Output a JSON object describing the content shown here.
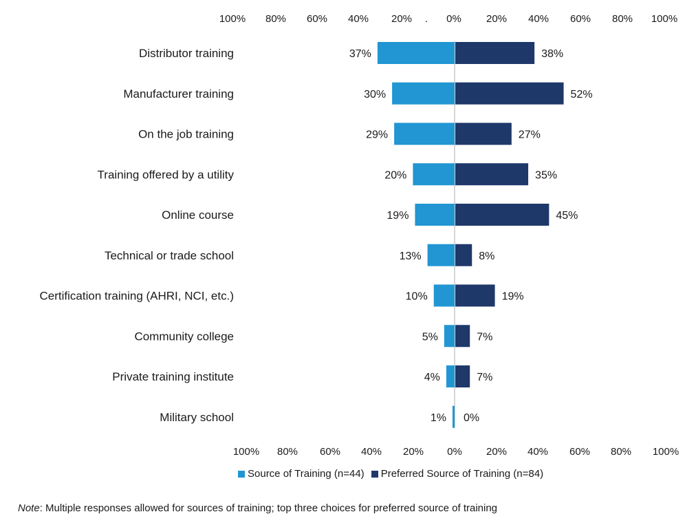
{
  "chart_data": {
    "type": "bar",
    "orientation": "horizontal-diverging",
    "categories": [
      "Distributor training",
      "Manufacturer training",
      "On the job training",
      "Training offered by a utility",
      "Online course",
      "Technical or trade school",
      "Certification training (AHRI, NCI, etc.)",
      "Community college",
      "Private training institute",
      "Military school"
    ],
    "series": [
      {
        "name": "Source of Training (n=44)",
        "side": "left",
        "color": "#2196d3",
        "values": [
          37,
          30,
          29,
          20,
          19,
          13,
          10,
          5,
          4,
          1
        ],
        "labels": [
          "37%",
          "30%",
          "29%",
          "20%",
          "19%",
          "13%",
          "10%",
          "5%",
          "4%",
          "1%"
        ]
      },
      {
        "name": "Preferred Source of Training (n=84)",
        "side": "right",
        "color": "#1f386a",
        "values": [
          38,
          52,
          27,
          35,
          45,
          8,
          19,
          7,
          7,
          0
        ],
        "labels": [
          "38%",
          "52%",
          "27%",
          "35%",
          "45%",
          "8%",
          "19%",
          "7%",
          "7%",
          "0%"
        ]
      }
    ],
    "xlim": [
      -100,
      100
    ],
    "top_ticks": [
      "100%",
      "80%",
      "60%",
      "40%",
      "20%",
      ".",
      "0%",
      "20%",
      "40%",
      "60%",
      "80%",
      "100%"
    ],
    "bottom_ticks": [
      "100%",
      "80%",
      "60%",
      "40%",
      "20%",
      "0%",
      "20%",
      "40%",
      "60%",
      "80%",
      "100%"
    ],
    "axis_color": "#c8c8c8",
    "title": "",
    "xlabel": "",
    "ylabel": ""
  },
  "note": {
    "label": "Note",
    "text": ": Multiple responses allowed for sources of training; top three choices for preferred source of training"
  }
}
